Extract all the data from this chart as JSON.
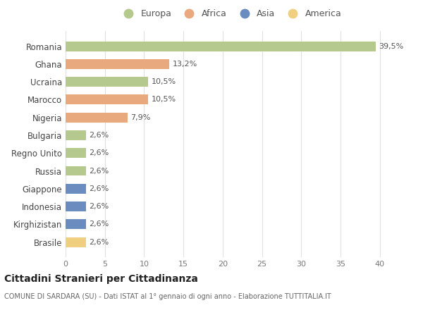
{
  "countries": [
    "Romania",
    "Ghana",
    "Ucraina",
    "Marocco",
    "Nigeria",
    "Bulgaria",
    "Regno Unito",
    "Russia",
    "Giappone",
    "Indonesia",
    "Kirghizistan",
    "Brasile"
  ],
  "values": [
    39.5,
    13.2,
    10.5,
    10.5,
    7.9,
    2.6,
    2.6,
    2.6,
    2.6,
    2.6,
    2.6,
    2.6
  ],
  "labels": [
    "39,5%",
    "13,2%",
    "10,5%",
    "10,5%",
    "7,9%",
    "2,6%",
    "2,6%",
    "2,6%",
    "2,6%",
    "2,6%",
    "2,6%",
    "2,6%"
  ],
  "continents": [
    "Europa",
    "Africa",
    "Europa",
    "Africa",
    "Africa",
    "Europa",
    "Europa",
    "Europa",
    "Asia",
    "Asia",
    "Asia",
    "America"
  ],
  "colors": {
    "Europa": "#b5c98e",
    "Africa": "#e8a97e",
    "Asia": "#6b8cbf",
    "America": "#f0d080"
  },
  "background_color": "#ffffff",
  "grid_color": "#e0e0e0",
  "title": "Cittadini Stranieri per Cittadinanza",
  "subtitle": "COMUNE DI SARDARA (SU) - Dati ISTAT al 1° gennaio di ogni anno - Elaborazione TUTTITALIA.IT",
  "xlim": [
    0,
    42
  ],
  "xticks": [
    0,
    5,
    10,
    15,
    20,
    25,
    30,
    35,
    40
  ],
  "legend_order": [
    "Europa",
    "Africa",
    "Asia",
    "America"
  ]
}
